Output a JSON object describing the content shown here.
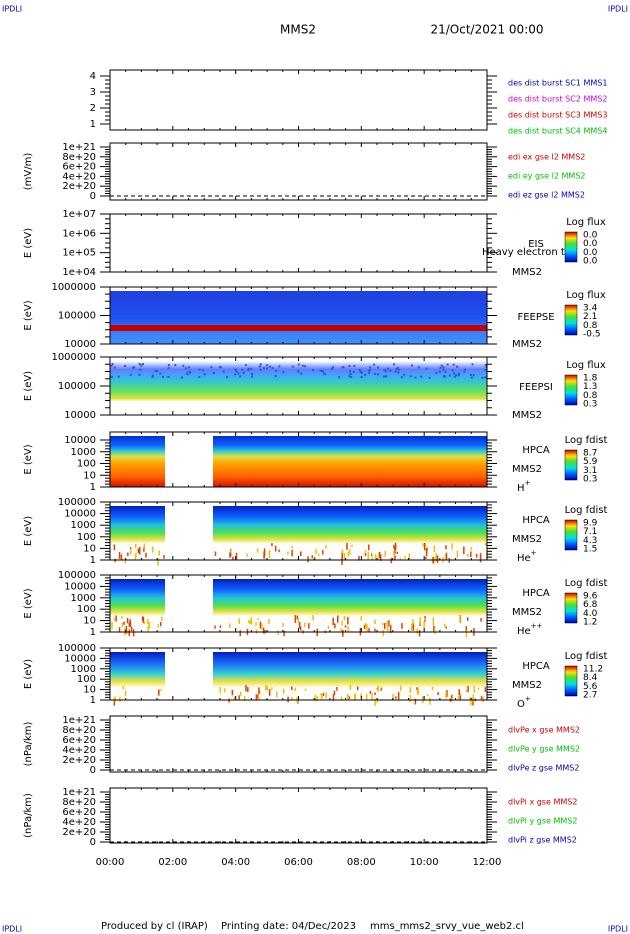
{
  "header": {
    "left_corner": "IPDLI",
    "right_corner": "IPDLI",
    "spacecraft": "MMS2",
    "date": "21/Oct/2021 00:00"
  },
  "footer": {
    "left_corner": "IPDLI",
    "right_corner": "IPDLI",
    "produced": "Produced by cl (IRAP)",
    "printing": "Printing date: 04/Dec/2023",
    "file": "mms_mms2_srvy_vue_web2.cl"
  },
  "x_axis": {
    "ticks": [
      "00:00",
      "02:00",
      "04:00",
      "06:00",
      "08:00",
      "10:00",
      "12:00"
    ]
  },
  "panels": [
    {
      "yticks": [
        4,
        3,
        2,
        1
      ],
      "legend": [
        {
          "text": "des dist burst SC1 MMS1",
          "color": "#0000c0"
        },
        {
          "text": "des dist burst SC2 MMS2",
          "color": "#d000d0"
        },
        {
          "text": "des dist burst SC3 MMS3",
          "color": "#d00000"
        },
        {
          "text": "des dist burst SC4 MMS4",
          "color": "#00c000"
        }
      ]
    },
    {
      "ylabel": "(mV/m)",
      "yticks": [
        "1e+21",
        "8e+20",
        "6e+20",
        "4e+20",
        "2e+20",
        0
      ],
      "legend": [
        {
          "text": "edi ex gse l2 MMS2",
          "color": "#d00000"
        },
        {
          "text": "edi ey gse l2 MMS2",
          "color": "#00c000"
        },
        {
          "text": "edi ez gse l2 MMS2",
          "color": "#0000c0"
        }
      ]
    },
    {
      "ylabel": "E (eV)",
      "yticks": [
        "1e+07",
        "1e+06",
        "1e+05",
        "1e+04"
      ],
      "instrument": "EIS",
      "overlay": "Heavy electron to",
      "spacecraft": "MMS2",
      "colorbar": {
        "title": "Log flux",
        "ticks": [
          "0.0",
          "0.0",
          "0.0",
          "0.0"
        ]
      }
    },
    {
      "ylabel": "E (eV)",
      "yticks": [
        1000000,
        100000,
        10000
      ],
      "instrument": "FEEPSE",
      "spacecraft": "MMS2",
      "colorbar": {
        "title": "Log flux",
        "ticks": [
          3.4,
          2.1,
          0.8,
          -0.5
        ]
      }
    },
    {
      "ylabel": "E (eV)",
      "yticks": [
        1000000,
        100000,
        10000
      ],
      "instrument": "FEEPSI",
      "spacecraft": "MMS2",
      "colorbar": {
        "title": "Log flux",
        "ticks": [
          1.8,
          1.3,
          0.8,
          0.3
        ]
      }
    },
    {
      "ylabel": "E (eV)",
      "yticks": [
        10000,
        1000,
        100,
        10,
        1
      ],
      "instrument": "HPCA",
      "spacecraft": "MMS2",
      "species": "H",
      "charge": "+",
      "colorbar": {
        "title": "Log fdist",
        "ticks": [
          8.7,
          5.9,
          3.1,
          0.3
        ]
      }
    },
    {
      "ylabel": "E (eV)",
      "yticks": [
        100000,
        10000,
        1000,
        100,
        10,
        1
      ],
      "instrument": "HPCA",
      "spacecraft": "MMS2",
      "species": "He",
      "charge": "+",
      "colorbar": {
        "title": "Log fdist",
        "ticks": [
          9.9,
          7.1,
          4.3,
          1.5
        ]
      }
    },
    {
      "ylabel": "E (eV)",
      "yticks": [
        100000,
        10000,
        1000,
        100,
        10,
        1
      ],
      "instrument": "HPCA",
      "spacecraft": "MMS2",
      "species": "He",
      "charge": "++",
      "colorbar": {
        "title": "Log fdist",
        "ticks": [
          9.6,
          6.8,
          "4.0",
          1.2
        ]
      }
    },
    {
      "ylabel": "E (eV)",
      "yticks": [
        100000,
        10000,
        1000,
        100,
        10,
        1
      ],
      "instrument": "HPCA",
      "spacecraft": "MMS2",
      "species": "O",
      "charge": "+",
      "colorbar": {
        "title": "Log fdist",
        "ticks": [
          11.2,
          8.4,
          5.6,
          2.7
        ]
      }
    },
    {
      "ylabel": "(nPa/km)",
      "yticks": [
        "1e+21",
        "8e+20",
        "6e+20",
        "4e+20",
        "2e+20",
        0
      ],
      "legend": [
        {
          "text": "dlvPe x gse MMS2",
          "color": "#d00000"
        },
        {
          "text": "dlvPe y gse MMS2",
          "color": "#00c000"
        },
        {
          "text": "dlvPe z gse MMS2",
          "color": "#0000c0"
        }
      ]
    },
    {
      "ylabel": "(nPa/km)",
      "yticks": [
        "1e+21",
        "8e+20",
        "6e+20",
        "4e+20",
        "2e+20",
        0
      ],
      "legend": [
        {
          "text": "dlvPi x gse MMS2",
          "color": "#d00000"
        },
        {
          "text": "dlvPi y gse MMS2",
          "color": "#00c000"
        },
        {
          "text": "dlvPi z gse MMS2",
          "color": "#0000c0"
        }
      ]
    }
  ]
}
